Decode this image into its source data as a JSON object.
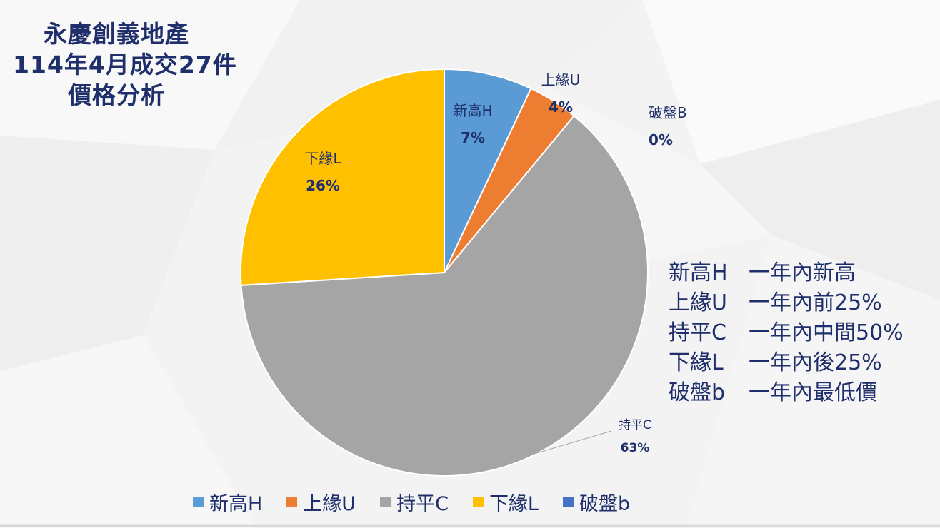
{
  "title": {
    "line1": "永慶創義地產",
    "line2": "114年4月成交27件",
    "line3": "價格分析"
  },
  "chart_data": {
    "type": "pie",
    "categories": [
      "新高H",
      "上緣U",
      "持平C",
      "下緣L",
      "破盤b"
    ],
    "data_label_names": [
      "新高H",
      "上緣U",
      "持平C",
      "下緣L",
      "破盤B"
    ],
    "values": [
      7,
      4,
      63,
      26,
      0
    ],
    "value_labels": [
      "7%",
      "4%",
      "63%",
      "26%",
      "0%"
    ],
    "colors": [
      "#5b9bd5",
      "#ed7d31",
      "#a5a5a5",
      "#ffc000",
      "#4472c4"
    ],
    "legend_position": "bottom"
  },
  "definitions": [
    {
      "code": "新高H",
      "desc": "一年內新高"
    },
    {
      "code": "上緣U",
      "desc": "一年內前25%"
    },
    {
      "code": "持平C",
      "desc": "一年內中間50%"
    },
    {
      "code": "下緣L",
      "desc": "一年內後25%"
    },
    {
      "code": "破盤b",
      "desc": "一年內最低價"
    }
  ]
}
